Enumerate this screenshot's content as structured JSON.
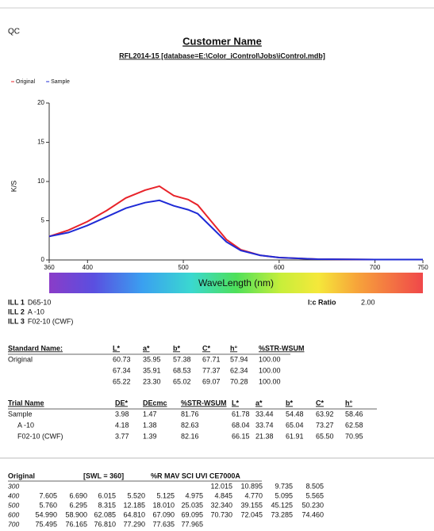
{
  "header": {
    "label": "QC",
    "title": "Customer Name",
    "subtitle": "RFL2014-15 [database=E:\\Color_iControl\\Jobs\\iControl.mdb]"
  },
  "chart_data": {
    "type": "line",
    "ylabel": "K/S",
    "xlabel": "WaveLength (nm)",
    "x": [
      360,
      380,
      400,
      420,
      440,
      460,
      475,
      490,
      505,
      515,
      530,
      545,
      560,
      580,
      600,
      640,
      700,
      750
    ],
    "series": [
      {
        "name": "Original",
        "color": "#e8232a",
        "values": [
          3.0,
          3.8,
          4.9,
          6.3,
          7.9,
          8.9,
          9.4,
          8.2,
          7.7,
          7.0,
          4.8,
          2.6,
          1.3,
          0.6,
          0.3,
          0.1,
          0.05,
          0.05
        ]
      },
      {
        "name": "Sample",
        "color": "#1f2bd6",
        "values": [
          3.0,
          3.5,
          4.4,
          5.5,
          6.6,
          7.3,
          7.6,
          6.9,
          6.4,
          5.9,
          4.1,
          2.3,
          1.2,
          0.6,
          0.3,
          0.1,
          0.05,
          0.05
        ]
      }
    ],
    "xlim": [
      360,
      750
    ],
    "xticks": [
      360,
      400,
      500,
      600,
      700,
      750
    ],
    "ylim": [
      0,
      20
    ],
    "yticks": [
      0,
      5,
      10,
      15,
      20
    ]
  },
  "illuminants": [
    {
      "label": "ILL 1",
      "value": "D65-10"
    },
    {
      "label": "ILL 2",
      "value": "A -10"
    },
    {
      "label": "ILL 3",
      "value": "F02-10 (CWF)"
    }
  ],
  "lc_ratio": {
    "label": "l:c Ratio",
    "value": "2.00"
  },
  "standard_table": {
    "headers": [
      "Standard Name:",
      "L*",
      "a*",
      "b*",
      "C*",
      "h°",
      "%STR-WSUM"
    ],
    "rows": [
      [
        "Original",
        "60.73",
        "35.95",
        "57.38",
        "67.71",
        "57.94",
        "100.00"
      ],
      [
        null,
        "67.34",
        "35.91",
        "68.53",
        "77.37",
        "62.34",
        "100.00"
      ],
      [
        null,
        "65.22",
        "23.30",
        "65.02",
        "69.07",
        "70.28",
        "100.00"
      ]
    ]
  },
  "trial_table": {
    "headers": [
      "Trial Name",
      "DE*",
      "DEcmc",
      "%STR-WSUM",
      "L*",
      "a*",
      "b*",
      "C*",
      "h°"
    ],
    "rows": [
      [
        "Sample",
        "3.98",
        "1.47",
        "81.76",
        "61.78",
        "33.44",
        "54.48",
        "63.92",
        "58.46"
      ],
      [
        "A -10",
        "4.18",
        "1.38",
        "82.63",
        "68.04",
        "33.74",
        "65.04",
        "73.27",
        "62.58"
      ],
      [
        "F02-10 (CWF)",
        "3.77",
        "1.39",
        "82.16",
        "66.15",
        "21.38",
        "61.91",
        "65.50",
        "70.95"
      ]
    ]
  },
  "spectral_table": {
    "headers": [
      "Original",
      "[SWL = 360]",
      "%R MAV SCI UVI CE7000A"
    ],
    "rows": [
      {
        "wavelength": "300",
        "values": [
          null,
          null,
          null,
          null,
          null,
          null,
          "12.015",
          "10.895",
          "9.735",
          "8.505"
        ]
      },
      {
        "wavelength": "400",
        "values": [
          "7.605",
          "6.690",
          "6.015",
          "5.520",
          "5.125",
          "4.975",
          "4.845",
          "4.770",
          "5.095",
          "5.565"
        ]
      },
      {
        "wavelength": "500",
        "values": [
          "5.760",
          "6.295",
          "8.315",
          "12.185",
          "18.010",
          "25.035",
          "32.340",
          "39.155",
          "45.125",
          "50.230"
        ]
      },
      {
        "wavelength": "600",
        "values": [
          "54.990",
          "58.900",
          "62.085",
          "64.810",
          "67.090",
          "69.095",
          "70.730",
          "72.045",
          "73.285",
          "74.460"
        ]
      },
      {
        "wavelength": "700",
        "values": [
          "75.495",
          "76.165",
          "76.810",
          "77.290",
          "77.635",
          "77.965",
          null,
          null,
          null,
          null
        ]
      }
    ]
  }
}
